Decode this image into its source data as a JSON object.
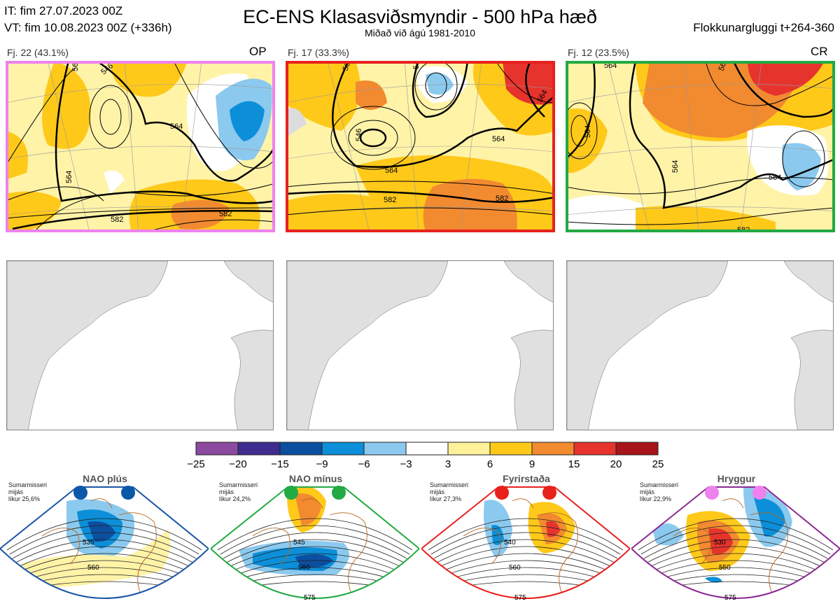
{
  "header": {
    "it_line": "IT: fim 27.07.2023 00Z",
    "vt_line": "VT: fim 10.08.2023 00Z  (+336h)",
    "title": "EC-ENS Klasasviðsmyndir - 500 hPa hæð",
    "subtitle": "Miðað við ágú 1981-2010",
    "window": "Flokkunargluggi t+264-360"
  },
  "panels": [
    {
      "label": "Fj. 22 (43.1%)",
      "tag": "OP",
      "border_color": "#ee82ee",
      "contours": [
        "564",
        "546",
        "564",
        "564",
        "582",
        "582"
      ]
    },
    {
      "label": "Fj. 17 (33.3%)",
      "tag": "",
      "border_color": "#e8211d",
      "contours": [
        "564",
        "546",
        "546",
        "564",
        "564",
        "582",
        "582",
        "564"
      ]
    },
    {
      "label": "Fj. 12 (23.5%)",
      "tag": "CR",
      "border_color": "#22aa44",
      "contours": [
        "564",
        "564",
        "564",
        "564",
        "564",
        "582"
      ]
    }
  ],
  "colorbar": {
    "ticks": [
      "−25",
      "−20",
      "−15",
      "−9",
      "−6",
      "−3",
      "3",
      "6",
      "9",
      "15",
      "20",
      "25"
    ],
    "colors": [
      "#8b4a9f",
      "#3e2c8f",
      "#0b4fa0",
      "#0c8fd8",
      "#8cc9ee",
      "#ffffff",
      "#fff09a",
      "#ffc91a",
      "#f28a30",
      "#e6342d",
      "#a8141a"
    ]
  },
  "regimes": [
    {
      "title": "NAO plús",
      "season": "Sumarmisseri",
      "sub": "mijás",
      "likur": "líkur 25,6%",
      "dot_color": "#0c57a8",
      "border_color": "#1a56a6",
      "contours": [
        "535",
        "560"
      ]
    },
    {
      "title": "NAO mínus",
      "season": "Sumarmisseri",
      "sub": "mijás",
      "likur": "líkur 24,2%",
      "dot_color": "#22aa44",
      "border_color": "#22aa44",
      "contours": [
        "545",
        "560",
        "575"
      ]
    },
    {
      "title": "Fyrirstaða",
      "season": "Sumarmisseri",
      "sub": "mijás",
      "likur": "líkur 27,3%",
      "dot_color": "#e8211d",
      "border_color": "#e8211d",
      "contours": [
        "540",
        "560",
        "575"
      ]
    },
    {
      "title": "Hryggur",
      "season": "Sumarmisseri",
      "sub": "mijás",
      "likur": "líkur 22,9%",
      "dot_color": "#ee82ee",
      "border_color": "#8b2a92",
      "contours": [
        "530",
        "550",
        "575"
      ]
    }
  ]
}
